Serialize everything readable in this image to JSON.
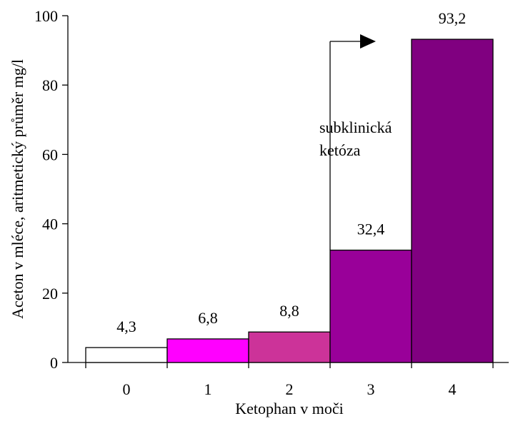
{
  "chart_data": {
    "type": "bar",
    "categories": [
      "0",
      "1",
      "2",
      "3",
      "4"
    ],
    "values": [
      4.3,
      6.8,
      8.8,
      32.4,
      93.2
    ],
    "data_labels": [
      "4,3",
      "6,8",
      "8,8",
      "32,4",
      "93,2"
    ],
    "bar_colors": [
      "#ffffff",
      "#ff00ff",
      "#cc3399",
      "#990099",
      "#800080"
    ],
    "title": "",
    "xlabel": "Ketophan v moči",
    "ylabel": "Aceton v mléce, aritmetický průměr mg/l",
    "ylim": [
      0,
      100
    ],
    "yticks": [
      0,
      20,
      40,
      60,
      80,
      100
    ],
    "grid": false,
    "legend": false,
    "annotation": {
      "lines": [
        "subklinická",
        "ketóza"
      ],
      "marks_categories": [
        "3",
        "4"
      ]
    }
  }
}
